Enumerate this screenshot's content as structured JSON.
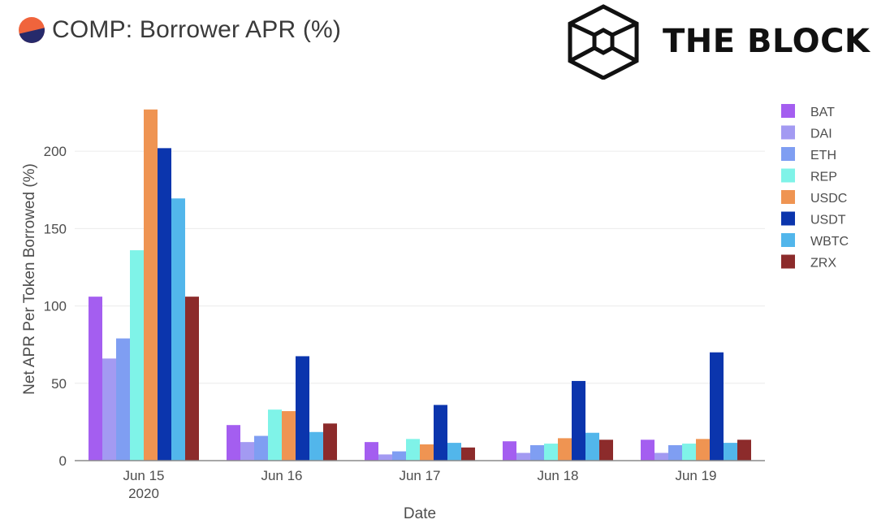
{
  "header": {
    "title": "COMP: Borrower APR (%)",
    "brand": "THE BLOCK",
    "title_icon": "half-circle-logo-icon",
    "brand_icon": "cube-logo-icon"
  },
  "chart_data": {
    "type": "bar",
    "title": "COMP: Borrower APR (%)",
    "xlabel": "Date",
    "ylabel": "Net APR Per Token Borrowed (%)",
    "categories": [
      "Jun 15",
      "Jun 16",
      "Jun 17",
      "Jun 18",
      "Jun 19"
    ],
    "category_sublabels": [
      "2020",
      "",
      "",
      "",
      ""
    ],
    "ylim": [
      0,
      240
    ],
    "yticks": [
      0,
      50,
      100,
      150,
      200
    ],
    "grid": true,
    "legend_position": "right",
    "series": [
      {
        "name": "BAT",
        "color": "#a45ef0",
        "values": [
          106,
          23,
          12,
          12.5,
          13.5
        ]
      },
      {
        "name": "DAI",
        "color": "#a39af2",
        "values": [
          66,
          12,
          4,
          5,
          5
        ]
      },
      {
        "name": "ETH",
        "color": "#7f9ef2",
        "values": [
          79,
          16,
          6,
          10,
          10
        ]
      },
      {
        "name": "REP",
        "color": "#7ff3e8",
        "values": [
          136,
          33,
          14,
          11,
          11
        ]
      },
      {
        "name": "USDC",
        "color": "#ef9452",
        "values": [
          227,
          32,
          10.5,
          14.5,
          14
        ]
      },
      {
        "name": "USDT",
        "color": "#0b35ad",
        "values": [
          202,
          67.5,
          36,
          51.5,
          70
        ]
      },
      {
        "name": "WBTC",
        "color": "#52b6eb",
        "values": [
          169.5,
          18.5,
          11.5,
          18,
          11.5
        ]
      },
      {
        "name": "ZRX",
        "color": "#8c2b2b",
        "values": [
          106,
          24,
          8.5,
          13.5,
          13.5
        ]
      }
    ]
  }
}
